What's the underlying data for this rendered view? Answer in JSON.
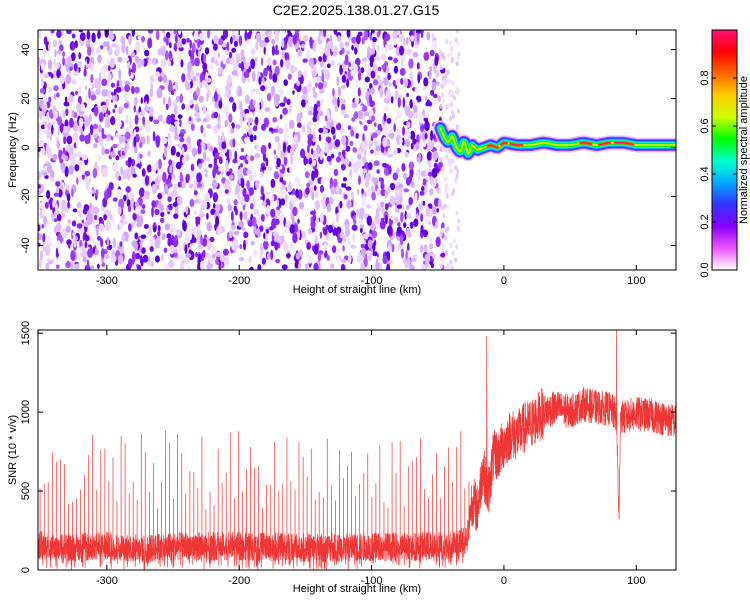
{
  "title": "C2E2.2025.138.01.27.G15",
  "chart_data": [
    {
      "type": "heatmap",
      "xlabel": "Height of straight line (km)",
      "ylabel": "Frequency (Hz)",
      "xlim": [
        -352,
        130
      ],
      "ylim": [
        -50,
        48
      ],
      "xticks": [
        -300,
        -200,
        -100,
        0,
        100
      ],
      "yticks": [
        -40,
        -20,
        0,
        20,
        40
      ],
      "grid": false,
      "colorbar": {
        "label": "Normalized spectral amplitude",
        "range": [
          0,
          1
        ],
        "ticks": [
          "0.0",
          "0.2",
          "0.4",
          "0.6",
          "0.8"
        ],
        "tick_values": [
          0,
          0.2,
          0.4,
          0.6,
          0.8
        ],
        "colors": [
          "#ffffff",
          "#ee55ff",
          "#8800ff",
          "#3333ff",
          "#00aaff",
          "#00ffcc",
          "#00ff00",
          "#ccff00",
          "#ffcc00",
          "#ff6600",
          "#ff0000",
          "#ff1177"
        ]
      },
      "regions": [
        {
          "name": "noise",
          "x": [
            -352,
            -46
          ],
          "y": [
            -50,
            48
          ],
          "amplitude": [
            0,
            0.15
          ]
        },
        {
          "name": "fringe",
          "x": [
            -48,
            -34
          ],
          "y": [
            -50,
            48
          ],
          "amplitude": [
            0,
            0.05
          ]
        },
        {
          "name": "signal",
          "x": [
            -48,
            130
          ],
          "frequency_hz": 1,
          "amplitude_peak": 0.95
        }
      ],
      "signal_track": {
        "x": [
          -48,
          -45,
          -42,
          -39,
          -36,
          -33,
          -30,
          -27,
          -24,
          -20,
          -15,
          -10,
          -5,
          0,
          10,
          20,
          30,
          40,
          50,
          60,
          70,
          80,
          90,
          100,
          110,
          120,
          130
        ],
        "y": [
          8,
          4,
          2,
          5,
          0,
          -2,
          3,
          -3,
          1,
          -1,
          0,
          1,
          0,
          2,
          1,
          1,
          2,
          1,
          1,
          2,
          1,
          2,
          2,
          1,
          1,
          1,
          1
        ]
      }
    },
    {
      "type": "line",
      "xlabel": "Height of straight line (km)",
      "ylabel": "SNR (10 * v/v)",
      "xlim": [
        -352,
        130
      ],
      "ylim": [
        0,
        1520
      ],
      "xticks": [
        -300,
        -200,
        -100,
        0,
        100
      ],
      "yticks": [
        0,
        500,
        1000,
        1500
      ],
      "grid": false,
      "series": [
        {
          "color": "#f03535",
          "x": [
            -352,
            -330,
            -300,
            -270,
            -250,
            -200,
            -150,
            -100,
            -60,
            -35,
            -28,
            -24,
            -20,
            -16,
            -12,
            -8,
            -4,
            0,
            5,
            10,
            15,
            20,
            25,
            30,
            40,
            50,
            60,
            70,
            80,
            85,
            87,
            88,
            90,
            95,
            100,
            110,
            120,
            130
          ],
          "y": [
            160,
            140,
            150,
            130,
            150,
            150,
            140,
            145,
            150,
            160,
            200,
            450,
            380,
            650,
            480,
            720,
            730,
            800,
            860,
            850,
            900,
            920,
            960,
            1000,
            1030,
            1000,
            1050,
            1030,
            1020,
            980,
            300,
            1000,
            960,
            980,
            990,
            980,
            960,
            940
          ],
          "noise_amplitude": 90,
          "spikes": {
            "x_range": [
              -352,
              -25
            ],
            "count": 107,
            "peak_range": [
              380,
              880
            ]
          }
        }
      ]
    }
  ]
}
